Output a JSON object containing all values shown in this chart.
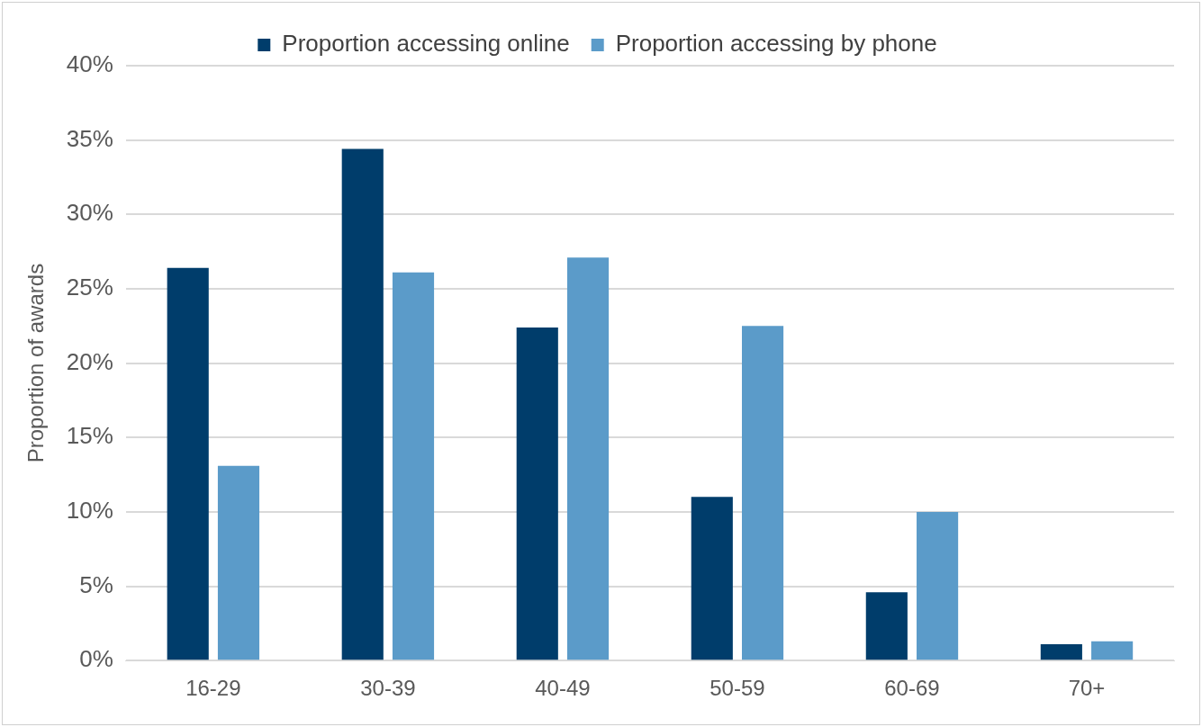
{
  "chart_data": {
    "type": "bar",
    "ylabel": "Proportion of awards",
    "categories": [
      "16-29",
      "30-39",
      "40-49",
      "50-59",
      "60-69",
      "70+"
    ],
    "series": [
      {
        "name": "Proportion accessing online",
        "color": "#003d6b",
        "values": [
          26.4,
          34.4,
          22.4,
          11.0,
          4.6,
          1.1
        ]
      },
      {
        "name": "Proportion accessing by phone",
        "color": "#5b9bc9",
        "values": [
          13.1,
          26.1,
          27.1,
          22.5,
          10.0,
          1.3
        ]
      }
    ],
    "ylim": [
      0,
      40
    ],
    "yticks": [
      {
        "value": 0,
        "label": "0%"
      },
      {
        "value": 5,
        "label": "5%"
      },
      {
        "value": 10,
        "label": "10%"
      },
      {
        "value": 15,
        "label": "15%"
      },
      {
        "value": 20,
        "label": "20%"
      },
      {
        "value": 25,
        "label": "25%"
      },
      {
        "value": 30,
        "label": "30%"
      },
      {
        "value": 35,
        "label": "35%"
      },
      {
        "value": 40,
        "label": "40%"
      }
    ],
    "grid": "y",
    "legend": "top"
  }
}
